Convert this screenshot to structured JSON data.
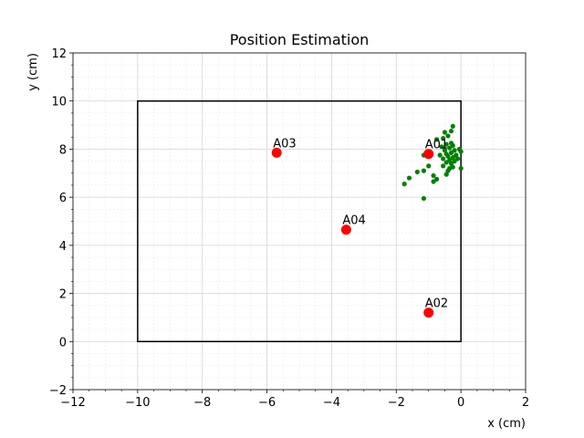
{
  "chart_data": {
    "type": "scatter",
    "title": "Position Estimation",
    "xlabel": "x (cm)",
    "ylabel": "y (cm)",
    "xlim": [
      -12,
      2
    ],
    "ylim": [
      -2,
      12
    ],
    "xticks": [
      -12,
      -10,
      -8,
      -6,
      -4,
      -2,
      0,
      2
    ],
    "yticks": [
      -2,
      0,
      2,
      4,
      6,
      8,
      10,
      12
    ],
    "xtick_labels": [
      "−12",
      "−10",
      "−8",
      "−6",
      "−4",
      "−2",
      "0",
      "2"
    ],
    "ytick_labels": [
      "−2",
      "0",
      "2",
      "4",
      "6",
      "8",
      "10",
      "12"
    ],
    "grid": true,
    "minor_grid": true,
    "boundary": {
      "x": [
        -10,
        0
      ],
      "y": [
        0,
        10
      ],
      "color": "#000000"
    },
    "anchors": {
      "color": "#ff0000",
      "points": [
        {
          "label": "A01",
          "x": -1.0,
          "y": 7.8
        },
        {
          "label": "A02",
          "x": -1.0,
          "y": 1.2
        },
        {
          "label": "A03",
          "x": -5.7,
          "y": 7.85
        },
        {
          "label": "A04",
          "x": -3.55,
          "y": 4.65
        }
      ]
    },
    "estimates": {
      "color": "#008000",
      "points": [
        [
          -0.25,
          8.95
        ],
        [
          -0.3,
          8.75
        ],
        [
          -0.5,
          8.7
        ],
        [
          -0.4,
          8.55
        ],
        [
          -0.55,
          8.45
        ],
        [
          -0.75,
          8.4
        ],
        [
          -0.3,
          8.25
        ],
        [
          -0.45,
          8.2
        ],
        [
          -0.25,
          8.15
        ],
        [
          -0.6,
          8.1
        ],
        [
          -0.35,
          8.05
        ],
        [
          -0.05,
          8.0
        ],
        [
          -0.2,
          7.95
        ],
        [
          -0.5,
          7.95
        ],
        [
          0.0,
          7.9
        ],
        [
          -0.3,
          7.85
        ],
        [
          -0.45,
          7.8
        ],
        [
          -0.65,
          7.75
        ],
        [
          -0.15,
          7.75
        ],
        [
          -0.4,
          7.7
        ],
        [
          -0.25,
          7.65
        ],
        [
          -0.55,
          7.6
        ],
        [
          -0.1,
          7.6
        ],
        [
          -0.35,
          7.55
        ],
        [
          -0.2,
          7.5
        ],
        [
          -0.45,
          7.45
        ],
        [
          -0.3,
          7.4
        ],
        [
          -1.15,
          7.75
        ],
        [
          -0.55,
          7.3
        ],
        [
          -0.25,
          7.25
        ],
        [
          -0.35,
          7.2
        ],
        [
          0.0,
          7.2
        ],
        [
          -1.0,
          7.3
        ],
        [
          -0.4,
          7.1
        ],
        [
          -1.15,
          7.1
        ],
        [
          -1.35,
          7.05
        ],
        [
          -0.85,
          6.9
        ],
        [
          -0.45,
          6.95
        ],
        [
          -0.75,
          6.75
        ],
        [
          -1.6,
          6.8
        ],
        [
          -0.85,
          6.65
        ],
        [
          -1.75,
          6.55
        ],
        [
          -1.15,
          5.95
        ]
      ]
    }
  }
}
